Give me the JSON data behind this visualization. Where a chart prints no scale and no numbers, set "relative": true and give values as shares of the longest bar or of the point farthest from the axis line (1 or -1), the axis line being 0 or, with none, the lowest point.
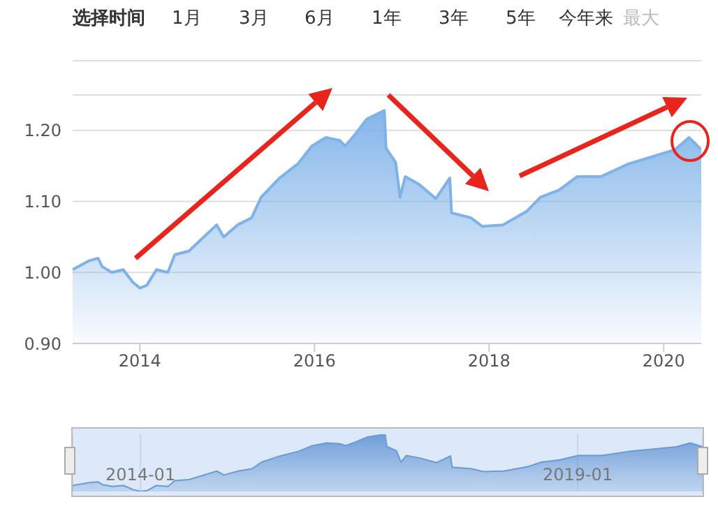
{
  "chart_data": [
    {
      "type": "area",
      "x": [
        2013.23,
        2013.41,
        2013.52,
        2013.57,
        2013.68,
        2013.81,
        2013.92,
        2014.0,
        2014.08,
        2014.19,
        2014.32,
        2014.4,
        2014.56,
        2014.69,
        2014.88,
        2014.96,
        2015.12,
        2015.28,
        2015.39,
        2015.6,
        2015.81,
        2015.97,
        2016.13,
        2016.29,
        2016.35,
        2016.45,
        2016.6,
        2016.8,
        2016.82,
        2016.93,
        2016.98,
        2017.04,
        2017.2,
        2017.39,
        2017.55,
        2017.57,
        2017.79,
        2017.92,
        2018.16,
        2018.43,
        2018.59,
        2018.8,
        2019.01,
        2019.28,
        2019.6,
        2019.87,
        2020.13,
        2020.29,
        2020.43
      ],
      "series": [
        {
          "color": "#7eb2e8",
          "values": [
            1.004,
            1.016,
            1.02,
            1.008,
            1.0,
            1.004,
            0.986,
            0.978,
            0.982,
            1.004,
            1.0,
            1.025,
            1.03,
            1.045,
            1.067,
            1.05,
            1.067,
            1.077,
            1.106,
            1.133,
            1.153,
            1.178,
            1.19,
            1.186,
            1.178,
            1.192,
            1.216,
            1.228,
            1.175,
            1.155,
            1.106,
            1.135,
            1.124,
            1.104,
            1.133,
            1.084,
            1.077,
            1.065,
            1.067,
            1.086,
            1.106,
            1.116,
            1.135,
            1.135,
            1.153,
            1.163,
            1.173,
            1.19,
            1.173
          ]
        }
      ],
      "xlim": [
        2013.23,
        2020.43
      ],
      "xticks": [
        2014,
        2016,
        2018,
        2020
      ],
      "ylim": [
        0.9,
        1.25
      ],
      "yticks": [
        {
          "value": 0.9,
          "label": "0.90"
        },
        {
          "value": 1.0,
          "label": "1.00"
        },
        {
          "value": 1.1,
          "label": "1.10"
        },
        {
          "value": 1.2,
          "label": "1.20"
        }
      ],
      "grid": "y",
      "marker": "none",
      "annotations": [
        "选择时间",
        "1月",
        "3月",
        "6月",
        "1年",
        "3年",
        "5年",
        "今年来",
        "最大"
      ]
    },
    {
      "type": "area",
      "x": [
        "2013-03-24",
        "2013-05-29",
        "2013-07-08",
        "2013-07-26",
        "2013-09-05",
        "2013-10-22",
        "2013-12-02",
        "2014-01-01",
        "2014-01-30",
        "2014-03-09",
        "2014-04-26",
        "2014-05-25",
        "2014-07-23",
        "2014-09-09",
        "2014-11-17",
        "2014-12-16",
        "2015-02-14",
        "2015-04-12",
        "2015-05-22",
        "2015-08-07",
        "2015-10-22",
        "2015-12-20",
        "2016-02-18",
        "2016-04-15",
        "2016-05-07",
        "2016-06-13",
        "2016-08-07",
        "2016-10-19",
        "2016-10-26",
        "2016-12-06",
        "2016-12-24",
        "2017-01-15",
        "2017-03-13",
        "2017-05-22",
        "2017-07-19",
        "2017-07-26",
        "2017-10-15",
        "2017-12-02",
        "2018-02-28",
        "2018-06-06",
        "2018-08-03",
        "2018-10-19",
        "2019-01-04",
        "2019-04-12",
        "2019-08-07",
        "2019-11-14",
        "2020-02-18",
        "2020-04-15",
        "2020-06-06"
      ],
      "series": [
        {
          "color": "#6a9ad6",
          "values": [
            0.104,
            0.152,
            0.168,
            0.12,
            0.088,
            0.104,
            0.032,
            0,
            0.016,
            0.104,
            0.088,
            0.188,
            0.208,
            0.268,
            0.356,
            0.288,
            0.356,
            0.396,
            0.512,
            0.62,
            0.7,
            0.8,
            0.848,
            0.832,
            0.8,
            0.856,
            0.952,
            1,
            0.788,
            0.708,
            0.512,
            0.628,
            0.584,
            0.504,
            0.62,
            0.424,
            0.396,
            0.348,
            0.356,
            0.432,
            0.512,
            0.552,
            0.628,
            0.628,
            0.7,
            0.74,
            0.78,
            0.848,
            0.78
          ]
        }
      ],
      "relative": true,
      "xlim": [
        "2013-03-24",
        "2020-06-06"
      ],
      "xticks": [
        "2014-01",
        "2019-01"
      ],
      "grid": "x",
      "marker": "none",
      "tick_labels": "x"
    }
  ]
}
